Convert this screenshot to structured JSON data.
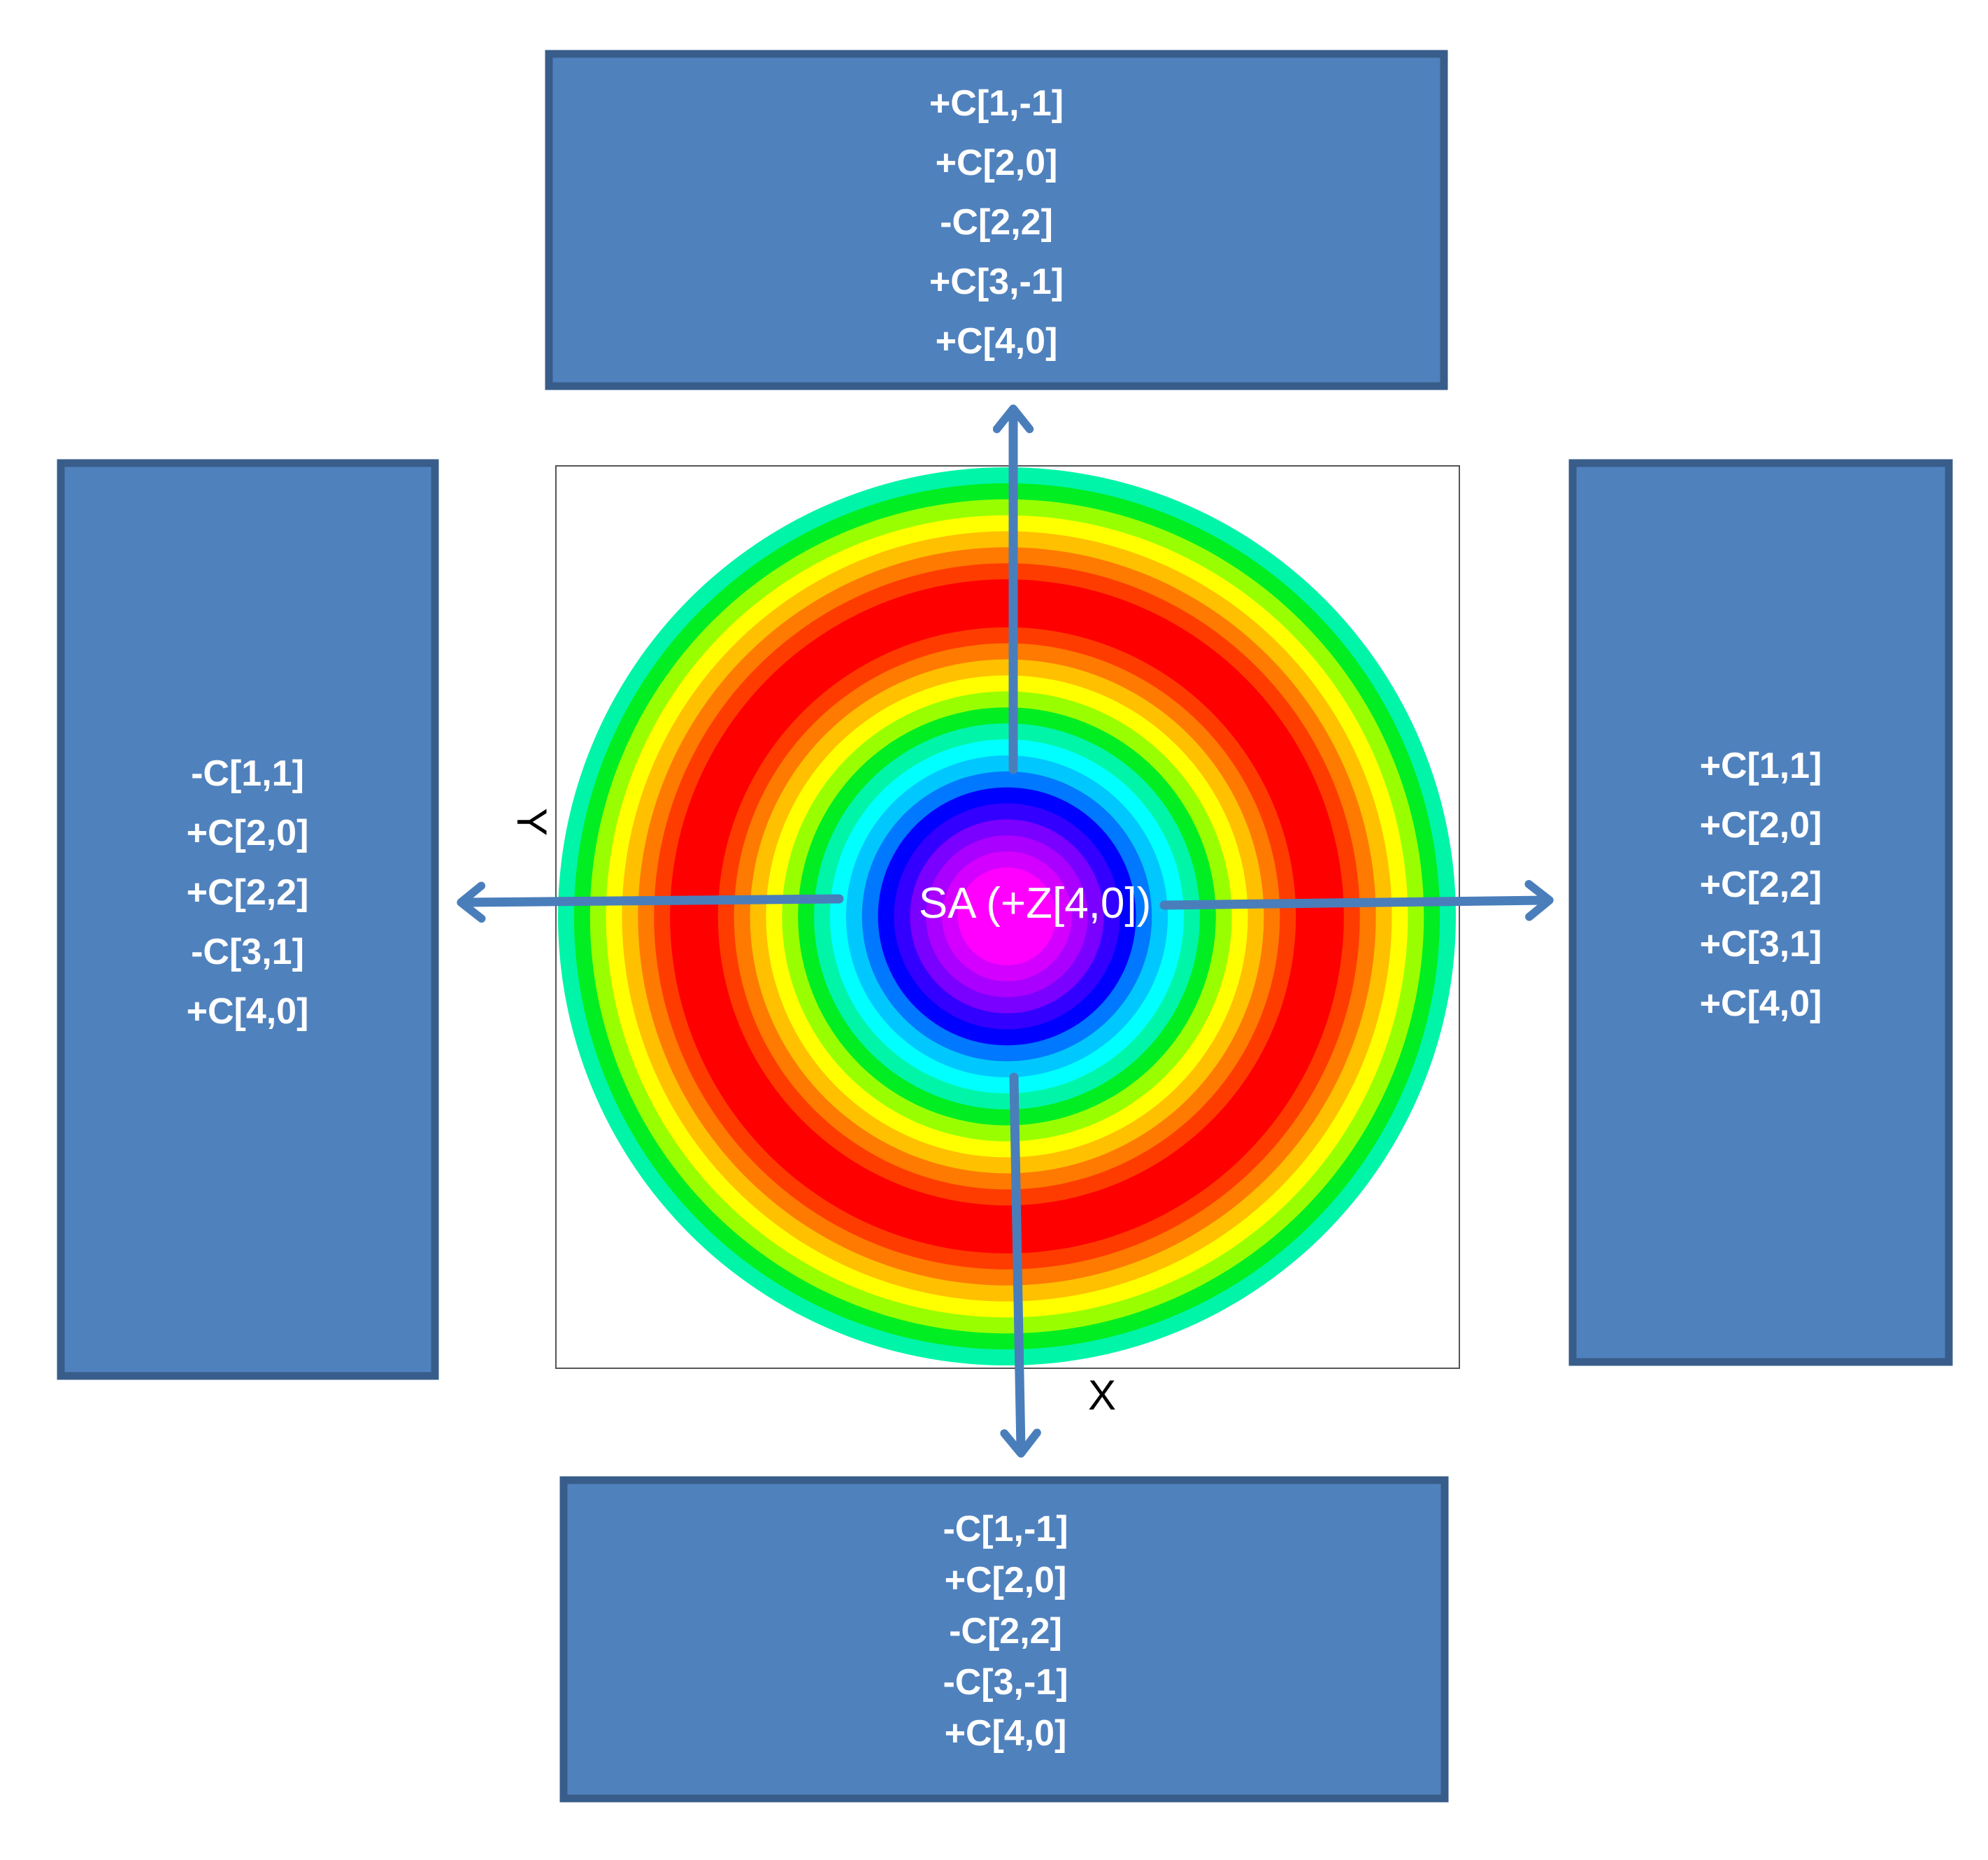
{
  "diagram": {
    "center_label": "SA (+Z[4,0])",
    "axis_x_label": "X",
    "axis_y_label": "Y",
    "colors": {
      "box_fill": "#4f81bd",
      "box_border": "#385d8a",
      "arrow": "#4a7ebb"
    },
    "ring_colors": [
      "#00f5a8",
      "#00ee22",
      "#99ff00",
      "#ffff00",
      "#ffc000",
      "#ff7a00",
      "#ff3c00",
      "#ff0000",
      "#ff0000",
      "#ff0000",
      "#ff3c00",
      "#ff7a00",
      "#ffc000",
      "#ffff00",
      "#99ff00",
      "#00ee22",
      "#00f5a8",
      "#00ffff",
      "#00c8ff",
      "#0078ff",
      "#0000ff",
      "#3300ff",
      "#7a00ff",
      "#aa00ff",
      "#d400ff",
      "#ff00ff"
    ],
    "boxes": {
      "top": [
        "+C[1,-1]",
        "+C[2,0]",
        "-C[2,2]",
        "+C[3,-1]",
        "+C[4,0]"
      ],
      "left": [
        "-C[1,1]",
        "+C[2,0]",
        "+C[2,2]",
        "-C[3,1]",
        "+C[4,0]"
      ],
      "right": [
        "+C[1,1]",
        "+C[2,0]",
        "+C[2,2]",
        "+C[3,1]",
        "+C[4,0]"
      ],
      "bottom": [
        "-C[1,-1]",
        "+C[2,0]",
        "-C[2,2]",
        "-C[3,-1]",
        "+C[4,0]"
      ]
    }
  }
}
